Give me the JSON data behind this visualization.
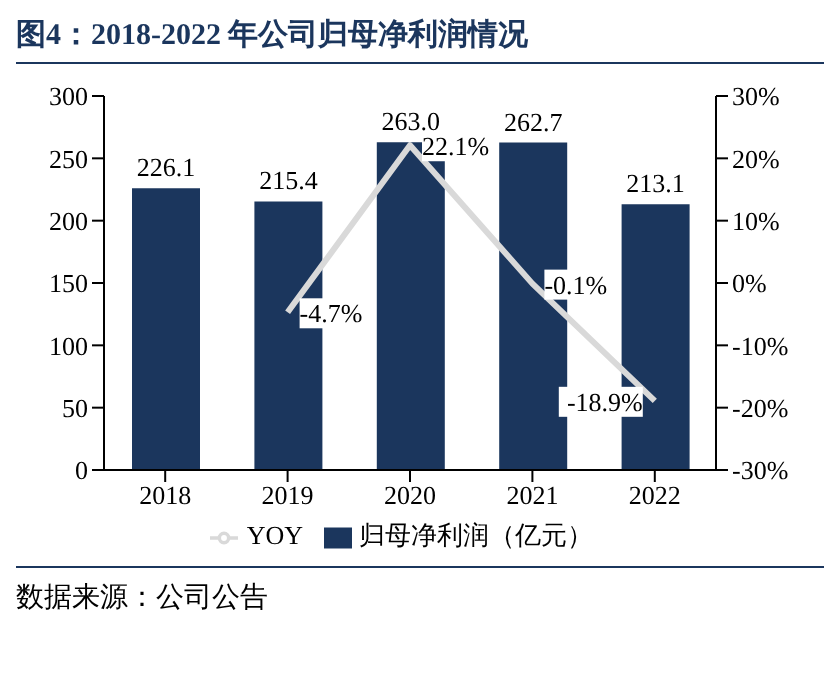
{
  "chart_data": {
    "type": "bar",
    "title": "图4：2018-2022 年公司归母净利润情况",
    "categories": [
      "2018",
      "2019",
      "2020",
      "2021",
      "2022"
    ],
    "series": [
      {
        "name": "归母净利润（亿元）",
        "color": "#1b365d",
        "values": [
          226.1,
          215.4,
          263.0,
          262.7,
          213.1
        ],
        "value_labels": [
          "226.1",
          "215.4",
          "263.0",
          "262.7",
          "213.1"
        ]
      },
      {
        "name": "YOY",
        "type": "line",
        "axis": "y2",
        "color": "#d9d9d9",
        "values": [
          null,
          -4.7,
          22.1,
          -0.1,
          -18.9
        ],
        "value_labels": [
          null,
          "-4.7%",
          "22.1%",
          "-0.1%",
          "-18.9%"
        ]
      }
    ],
    "ylim": [
      0,
      300
    ],
    "yticks": [
      0,
      50,
      100,
      150,
      200,
      250,
      300
    ],
    "y2lim": [
      -30,
      30
    ],
    "y2ticks": [
      {
        "value": -30,
        "label": "-30%"
      },
      {
        "value": -20,
        "label": "-20%"
      },
      {
        "value": -10,
        "label": "-10%"
      },
      {
        "value": 0,
        "label": "0%"
      },
      {
        "value": 10,
        "label": "10%"
      },
      {
        "value": 20,
        "label": "20%"
      },
      {
        "value": 30,
        "label": "30%"
      }
    ],
    "legend": "bottom",
    "marker": "none",
    "annotations": [
      "数据来源：公司公告"
    ]
  }
}
